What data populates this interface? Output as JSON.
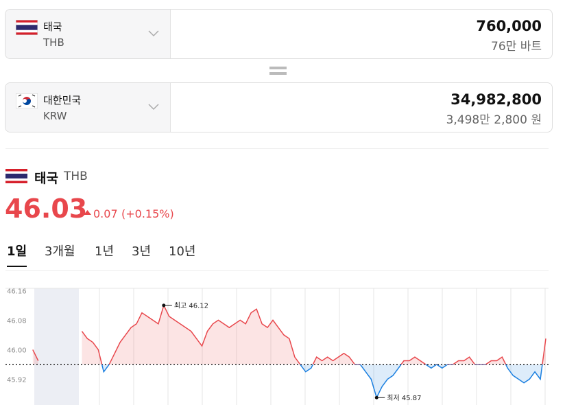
{
  "from": {
    "name": "태국",
    "code": "THB",
    "amount": "760,000",
    "amount_words": "76만 바트"
  },
  "to": {
    "name": "대한민국",
    "code": "KRW",
    "amount": "34,982,800",
    "amount_words": "3,498만 2,800 원"
  },
  "rate": {
    "name": "태국",
    "code": "THB",
    "value": "46.03",
    "change": "0.07",
    "change_percent": "(+0.15%)"
  },
  "tabs": [
    "1일",
    "3개월",
    "1년",
    "3년",
    "10년"
  ],
  "active_tab": 0,
  "chart_data": {
    "type": "line",
    "ylim": [
      45.85,
      46.185
    ],
    "yticks": [
      46.16,
      46.08,
      {
        "value": 46,
        "label": "46.00"
      },
      45.92
    ],
    "baseline": 45.96,
    "up_color": "#e8474c",
    "down_color": "#1a7fe0",
    "annotations": [
      "최고 46.12",
      "최저 45.87"
    ],
    "values": [
      null,
      null,
      null,
      null,
      null,
      46.0,
      45.97,
      null,
      null,
      null,
      null,
      null,
      null,
      null,
      46.05,
      46.03,
      46.02,
      46.0,
      45.94,
      45.96,
      45.99,
      46.02,
      46.04,
      46.06,
      46.07,
      46.1,
      46.09,
      46.08,
      46.07,
      46.12,
      46.09,
      46.08,
      46.07,
      46.06,
      46.05,
      46.03,
      46.01,
      46.05,
      46.07,
      46.08,
      46.07,
      46.06,
      46.07,
      46.08,
      46.07,
      46.1,
      46.11,
      46.07,
      46.06,
      46.08,
      46.06,
      46.04,
      46.03,
      45.98,
      45.96,
      45.94,
      45.95,
      45.98,
      45.97,
      45.98,
      45.97,
      45.98,
      45.99,
      45.98,
      45.96,
      45.96,
      45.94,
      45.92,
      45.87,
      45.9,
      45.92,
      45.93,
      45.95,
      45.97,
      45.97,
      45.98,
      45.97,
      45.96,
      45.95,
      45.96,
      45.95,
      45.96,
      45.96,
      45.97,
      45.97,
      45.98,
      45.96,
      45.96,
      45.96,
      45.97,
      45.97,
      45.98,
      45.95,
      45.93,
      45.92,
      45.91,
      45.92,
      45.94,
      45.92,
      46.03
    ]
  }
}
